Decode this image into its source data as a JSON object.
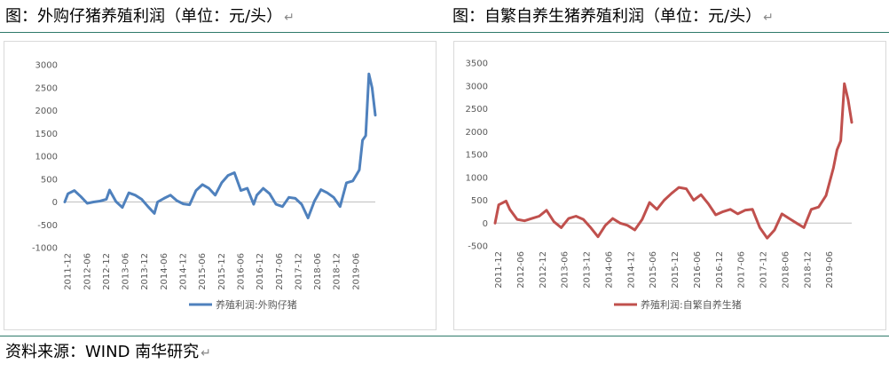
{
  "titles": {
    "left": "图：外购仔猪养殖利润（单位：元/头）",
    "right": "图：自繁自养生猪养殖利润（单位：元/头）",
    "return_mark": "↵"
  },
  "source": "资料来源：WIND  南华研究",
  "colors": {
    "left_series": "#4f81bd",
    "right_series": "#c0504d",
    "rule": "#2f7a6a"
  },
  "chart_data": [
    {
      "type": "line",
      "title": "",
      "xlabel": "",
      "ylabel": "",
      "ylim": [
        -1000,
        3000
      ],
      "yticks": [
        -1000,
        -500,
        0,
        500,
        1000,
        1500,
        2000,
        2500,
        3000
      ],
      "xlim": [
        "2011-11",
        "2019-12"
      ],
      "xticks": [
        "2011-12",
        "2012-06",
        "2012-12",
        "2013-06",
        "2013-12",
        "2014-06",
        "2014-12",
        "2015-06",
        "2015-12",
        "2016-06",
        "2016-12",
        "2017-06",
        "2017-12",
        "2018-06",
        "2018-12",
        "2019-06"
      ],
      "grid": false,
      "legend": "bottom-center",
      "series": [
        {
          "name": "养殖利润:外购仔猪",
          "x": [
            "2011-11",
            "2011-12",
            "2012-02",
            "2012-04",
            "2012-06",
            "2012-08",
            "2012-10",
            "2012-12",
            "2013-01",
            "2013-03",
            "2013-05",
            "2013-07",
            "2013-09",
            "2013-11",
            "2014-01",
            "2014-03",
            "2014-04",
            "2014-06",
            "2014-08",
            "2014-10",
            "2014-12",
            "2015-02",
            "2015-04",
            "2015-06",
            "2015-08",
            "2015-10",
            "2015-12",
            "2016-02",
            "2016-04",
            "2016-06",
            "2016-08",
            "2016-10",
            "2016-11",
            "2017-01",
            "2017-03",
            "2017-05",
            "2017-07",
            "2017-09",
            "2017-11",
            "2018-01",
            "2018-03",
            "2018-05",
            "2018-07",
            "2018-09",
            "2018-11",
            "2019-01",
            "2019-03",
            "2019-05",
            "2019-07",
            "2019-08",
            "2019-09",
            "2019-10",
            "2019-11",
            "2019-12"
          ],
          "values": [
            0,
            180,
            250,
            120,
            -30,
            0,
            20,
            60,
            260,
            10,
            -120,
            200,
            150,
            60,
            -100,
            -250,
            0,
            80,
            150,
            30,
            -40,
            -60,
            250,
            380,
            300,
            150,
            420,
            580,
            640,
            250,
            300,
            -50,
            150,
            300,
            180,
            -50,
            -100,
            100,
            80,
            -50,
            -350,
            20,
            270,
            200,
            100,
            -100,
            420,
            460,
            700,
            1350,
            1450,
            2800,
            2500,
            1900
          ]
        }
      ]
    },
    {
      "type": "line",
      "title": "",
      "xlabel": "",
      "ylabel": "",
      "ylim": [
        -500,
        3500
      ],
      "yticks": [
        -500,
        0,
        500,
        1000,
        1500,
        2000,
        2500,
        3000,
        3500
      ],
      "xlim": [
        "2011-11",
        "2019-12"
      ],
      "xticks": [
        "2011-12",
        "2012-06",
        "2012-12",
        "2013-06",
        "2013-12",
        "2014-06",
        "2014-12",
        "2015-06",
        "2015-12",
        "2016-06",
        "2016-12",
        "2017-06",
        "2017-12",
        "2018-06",
        "2018-12",
        "2019-06"
      ],
      "grid": false,
      "legend": "bottom-center",
      "series": [
        {
          "name": "养殖利润:自繁自养生猪",
          "x": [
            "2011-11",
            "2011-12",
            "2012-02",
            "2012-03",
            "2012-05",
            "2012-07",
            "2012-09",
            "2012-11",
            "2013-01",
            "2013-03",
            "2013-05",
            "2013-07",
            "2013-09",
            "2013-11",
            "2014-01",
            "2014-03",
            "2014-05",
            "2014-07",
            "2014-09",
            "2014-11",
            "2015-01",
            "2015-03",
            "2015-05",
            "2015-07",
            "2015-09",
            "2015-11",
            "2016-01",
            "2016-03",
            "2016-05",
            "2016-07",
            "2016-09",
            "2016-11",
            "2017-01",
            "2017-03",
            "2017-05",
            "2017-07",
            "2017-09",
            "2017-11",
            "2018-01",
            "2018-03",
            "2018-05",
            "2018-07",
            "2018-09",
            "2018-11",
            "2019-01",
            "2019-03",
            "2019-05",
            "2019-07",
            "2019-08",
            "2019-09",
            "2019-10",
            "2019-11",
            "2019-12"
          ],
          "values": [
            0,
            400,
            480,
            300,
            80,
            50,
            100,
            150,
            280,
            30,
            -100,
            100,
            150,
            80,
            -100,
            -300,
            -50,
            100,
            0,
            -50,
            -150,
            80,
            450,
            300,
            500,
            650,
            780,
            750,
            500,
            620,
            420,
            180,
            250,
            300,
            200,
            280,
            300,
            -100,
            -330,
            -150,
            200,
            100,
            0,
            -100,
            300,
            350,
            600,
            1200,
            1600,
            1800,
            3050,
            2700,
            2200
          ]
        }
      ]
    }
  ]
}
